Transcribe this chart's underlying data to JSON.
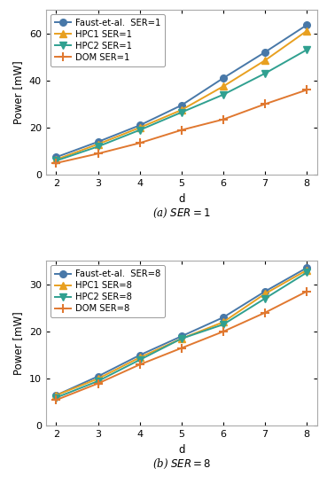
{
  "x": [
    2,
    3,
    4,
    5,
    6,
    7,
    8
  ],
  "ser1_faust": [
    7.5,
    14.0,
    21.0,
    29.5,
    41.0,
    52.0,
    63.5
  ],
  "ser1_hpc1": [
    6.5,
    13.0,
    20.0,
    27.5,
    37.5,
    48.5,
    61.0
  ],
  "ser1_hpc2": [
    6.0,
    12.0,
    19.0,
    26.5,
    34.0,
    43.0,
    53.0
  ],
  "ser1_dom": [
    5.0,
    9.0,
    13.5,
    19.0,
    23.5,
    30.0,
    36.0
  ],
  "ser8_faust": [
    6.5,
    10.5,
    15.0,
    19.0,
    23.0,
    28.5,
    33.5
  ],
  "ser8_hpc1": [
    6.5,
    10.0,
    14.5,
    18.5,
    22.0,
    28.0,
    33.0
  ],
  "ser8_hpc2": [
    6.0,
    9.5,
    14.0,
    18.5,
    21.5,
    27.0,
    32.5
  ],
  "ser8_dom": [
    5.5,
    9.0,
    13.0,
    16.5,
    20.0,
    24.0,
    28.5
  ],
  "color_faust": "#4878a8",
  "color_hpc1": "#e8a020",
  "color_hpc2": "#30a090",
  "color_dom": "#e07830",
  "label_faust_1": "Faust-et-al.  SER=1",
  "label_hpc1_1": "HPC1 SER=1",
  "label_hpc2_1": "HPC2 SER=1",
  "label_dom_1": "DOM SER=1",
  "label_faust_8": "Faust-et-al.  SER=8",
  "label_hpc1_8": "HPC1 SER=8",
  "label_hpc2_8": "HPC2 SER=8",
  "label_dom_8": "DOM SER=8",
  "ylabel": "Power [mW]",
  "xlabel": "d",
  "caption_a": "(a) $SER = 1$",
  "caption_b": "(b) $SER = 8$",
  "ylim1": [
    0,
    70
  ],
  "ylim2": [
    0,
    35
  ],
  "yticks1": [
    0,
    20,
    40,
    60
  ],
  "yticks2": [
    0,
    10,
    20,
    30
  ],
  "bg_color": "#ffffff"
}
